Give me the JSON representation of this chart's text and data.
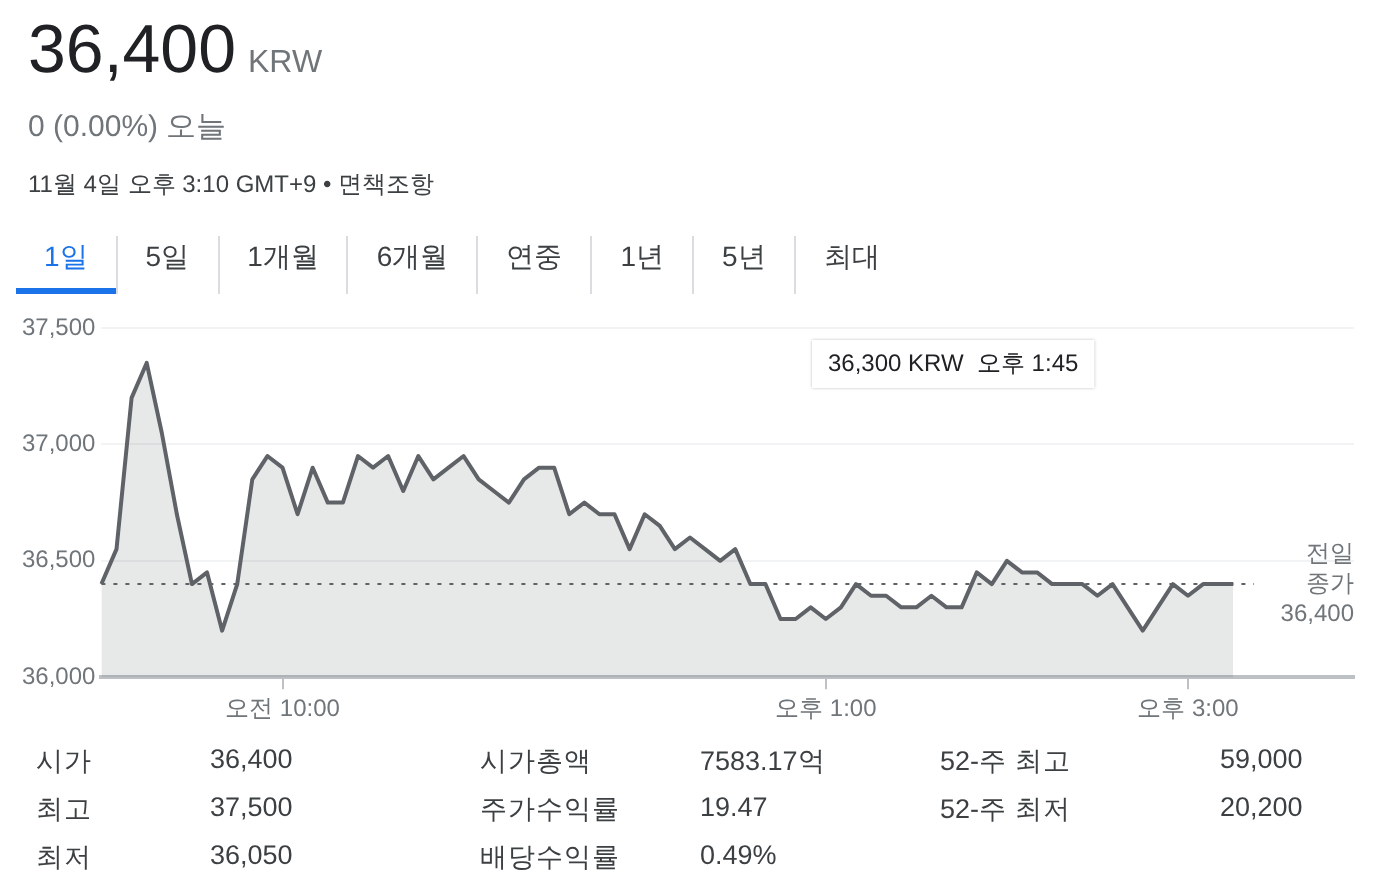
{
  "chart_data": {
    "type": "area",
    "title": "36,400 KRW",
    "subtitle": "0 (0.00%) 오늘",
    "annotations": [
      "11월 4일 오후 3:10 GMT+9 • 면책조항",
      "1일",
      "5일",
      "1개월",
      "6개월",
      "연중",
      "1년",
      "5년",
      "최대",
      "시가",
      "36,400",
      "시가총액",
      "7583.17억",
      "52-주 최고",
      "59,000",
      "최고",
      "37,500",
      "주가수익률",
      "19.47",
      "52-주 최저",
      "20,200",
      "최저",
      "36,050",
      "배당수익률",
      "0.49%",
      "36,300 KRW  오후 1:45"
    ],
    "categories": [
      null,
      null,
      null,
      null,
      null,
      null,
      null,
      null,
      null,
      null,
      null,
      null,
      "오전 10:00",
      null,
      null,
      null,
      null,
      null,
      null,
      null,
      null,
      null,
      null,
      null,
      null,
      null,
      null,
      null,
      null,
      null,
      null,
      null,
      null,
      null,
      null,
      null,
      null,
      null,
      null,
      null,
      null,
      null,
      null,
      null,
      null,
      null,
      null,
      null,
      "오후 1:00",
      null,
      null,
      null,
      null,
      null,
      null,
      null,
      null,
      null,
      null,
      null,
      null,
      null,
      null,
      null,
      null,
      null,
      null,
      null,
      null,
      null,
      null,
      null,
      "오후 3:00",
      null,
      null,
      null,
      null,
      null,
      null,
      null,
      null,
      null,
      null,
      null
    ],
    "series": [
      {
        "color": "#5f6368",
        "values": [
          36400,
          36550,
          37200,
          37350,
          37050,
          36700,
          36400,
          36450,
          36200,
          36400,
          36850,
          36950,
          36900,
          36700,
          36900,
          36750,
          36750,
          36950,
          36900,
          36950,
          36800,
          36950,
          36850,
          36900,
          36950,
          36850,
          36800,
          36750,
          36850,
          36900,
          36900,
          36700,
          36750,
          36700,
          36700,
          36550,
          36700,
          36650,
          36550,
          36600,
          36550,
          36500,
          36550,
          36400,
          36400,
          36250,
          36250,
          36300,
          36250,
          36300,
          36400,
          36350,
          36350,
          36300,
          36300,
          36350,
          36300,
          36300,
          36450,
          36400,
          36500,
          36450,
          36450,
          36400,
          36400,
          36400,
          36350,
          36400,
          36300,
          36200,
          36300,
          36400,
          36350,
          36400,
          36400,
          36400,
          null,
          null,
          null,
          null,
          null,
          null,
          null,
          null
        ]
      }
    ],
    "ylim": [
      36000,
      37500
    ],
    "yticks": [
      {
        "value": 36000,
        "label": "36,000"
      },
      {
        "value": 36500,
        "label": "36,500"
      },
      {
        "value": 37000,
        "label": "37,000"
      },
      {
        "value": 37500,
        "label": "37,500"
      }
    ],
    "ref_lines": [
      {
        "axis": "y",
        "value": 36400,
        "label": "전일\n종가\n36,400",
        "line_style": "dotted",
        "color": "#5f6368"
      }
    ],
    "grid": "y",
    "legend": false,
    "marker": "none",
    "line_style": "solid"
  }
}
